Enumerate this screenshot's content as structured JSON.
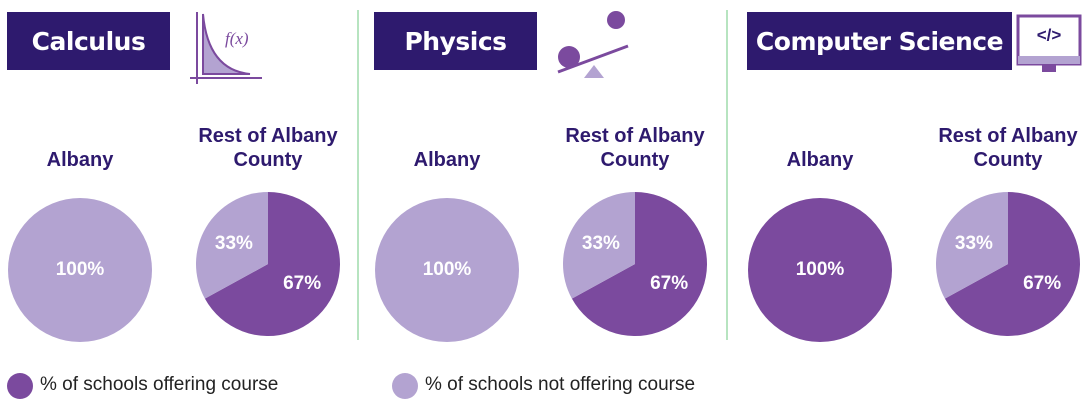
{
  "sections": [
    {
      "title": "Calculus",
      "icon_text": "f(x)"
    },
    {
      "title": "Physics"
    },
    {
      "title": "Computer Science",
      "icon_text": "</>"
    }
  ],
  "legend": [
    {
      "name": "% of schools offering course",
      "color": "#7b4a9e"
    },
    {
      "name": "% of schools not offering course",
      "color": "#b3a3d1"
    }
  ],
  "chart_data": [
    {
      "type": "pie",
      "title": "Albany",
      "values": [
        0,
        100
      ],
      "value_labels": [
        null,
        "100%"
      ]
    },
    {
      "type": "pie",
      "title": "Rest of Albany County",
      "values": [
        67,
        33
      ],
      "value_labels": [
        "67%",
        "33%"
      ]
    },
    {
      "type": "pie",
      "title": "Albany",
      "values": [
        0,
        100
      ],
      "value_labels": [
        null,
        "100%"
      ]
    },
    {
      "type": "pie",
      "title": "Rest of Albany County",
      "values": [
        67,
        33
      ],
      "value_labels": [
        "67%",
        "33%"
      ]
    },
    {
      "type": "pie",
      "title": "Albany",
      "values": [
        100,
        0
      ],
      "value_labels": [
        "100%",
        null
      ]
    },
    {
      "type": "pie",
      "title": "Rest of Albany County",
      "values": [
        67,
        33
      ],
      "value_labels": [
        "67%",
        "33%"
      ]
    }
  ]
}
